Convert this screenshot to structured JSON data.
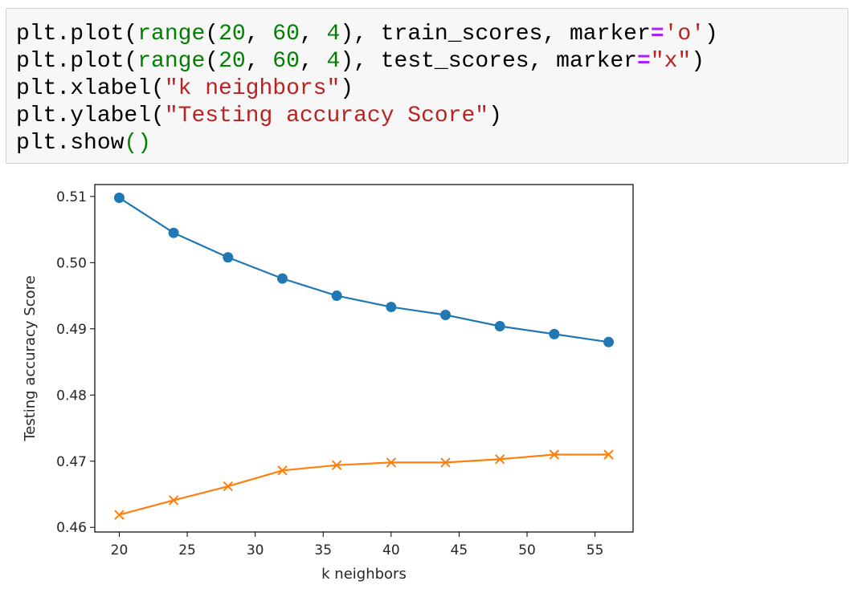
{
  "code_cell": {
    "lines": [
      [
        {
          "t": "plt.plot(",
          "c": "plain"
        },
        {
          "t": "range",
          "c": "builtin"
        },
        {
          "t": "(",
          "c": "plain"
        },
        {
          "t": "20",
          "c": "number"
        },
        {
          "t": ", ",
          "c": "plain"
        },
        {
          "t": "60",
          "c": "number"
        },
        {
          "t": ", ",
          "c": "plain"
        },
        {
          "t": "4",
          "c": "number"
        },
        {
          "t": "), train_scores, marker",
          "c": "plain"
        },
        {
          "t": "=",
          "c": "op"
        },
        {
          "t": "'o'",
          "c": "string"
        },
        {
          "t": ")",
          "c": "plain"
        }
      ],
      [
        {
          "t": "plt.plot(",
          "c": "plain"
        },
        {
          "t": "range",
          "c": "builtin"
        },
        {
          "t": "(",
          "c": "plain"
        },
        {
          "t": "20",
          "c": "number"
        },
        {
          "t": ", ",
          "c": "plain"
        },
        {
          "t": "60",
          "c": "number"
        },
        {
          "t": ", ",
          "c": "plain"
        },
        {
          "t": "4",
          "c": "number"
        },
        {
          "t": "), test_scores, marker",
          "c": "plain"
        },
        {
          "t": "=",
          "c": "op"
        },
        {
          "t": "\"x\"",
          "c": "string"
        },
        {
          "t": ")",
          "c": "plain"
        }
      ],
      [
        {
          "t": "plt.xlabel(",
          "c": "plain"
        },
        {
          "t": "\"k neighbors\"",
          "c": "string"
        },
        {
          "t": ")",
          "c": "plain"
        }
      ],
      [
        {
          "t": "plt.ylabel(",
          "c": "plain"
        },
        {
          "t": "\"Testing accuracy Score\"",
          "c": "string"
        },
        {
          "t": ")",
          "c": "plain"
        }
      ],
      [
        {
          "t": "plt.show",
          "c": "plain"
        },
        {
          "t": "()",
          "c": "paren-green"
        }
      ]
    ]
  },
  "chart_data": {
    "type": "line",
    "xlabel": "k neighbors",
    "ylabel": "Testing accuracy Score",
    "title": "",
    "x": [
      20,
      24,
      28,
      32,
      36,
      40,
      44,
      48,
      52,
      56
    ],
    "xlim": [
      18.2,
      57.8
    ],
    "ylim": [
      0.4593,
      0.5118
    ],
    "xticks": [
      20,
      25,
      30,
      35,
      40,
      45,
      50,
      55
    ],
    "yticks": [
      0.46,
      0.47,
      0.48,
      0.49,
      0.5,
      0.51
    ],
    "ytick_labels": [
      "0.46",
      "0.47",
      "0.48",
      "0.49",
      "0.50",
      "0.51"
    ],
    "grid": false,
    "series": [
      {
        "values": [
          0.5098,
          0.5045,
          0.5008,
          0.4976,
          0.495,
          0.4933,
          0.4921,
          0.4904,
          0.4892,
          0.488
        ],
        "marker": "o",
        "color": "#1f77b4"
      },
      {
        "values": [
          0.4619,
          0.4641,
          0.4662,
          0.4686,
          0.4694,
          0.4698,
          0.4698,
          0.4703,
          0.471,
          0.471
        ],
        "marker": "x",
        "color": "#ff7f0e"
      }
    ]
  }
}
